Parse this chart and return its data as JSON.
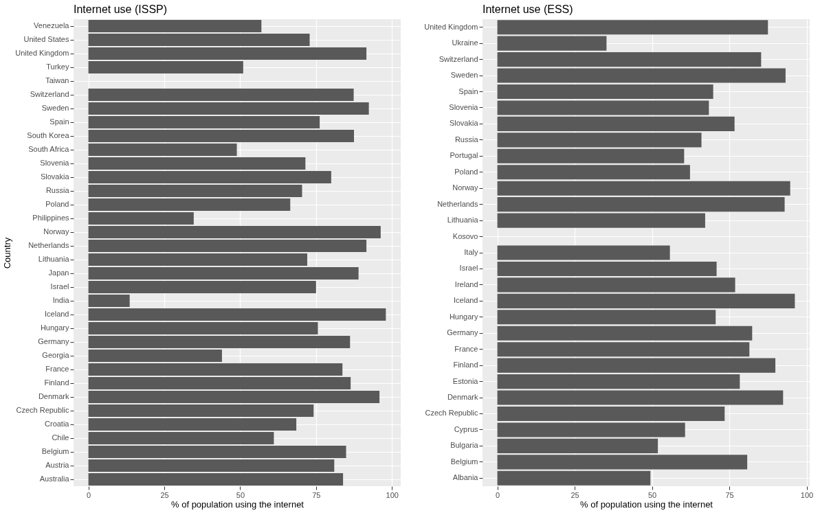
{
  "chart_data": [
    {
      "type": "bar",
      "orientation": "horizontal",
      "title": "Internet use (ISSP)",
      "xlabel": "% of population using the internet",
      "ylabel": "Country",
      "color": "#595959",
      "grid": true,
      "categories": [
        "Venezuela",
        "United States",
        "United Kingdom",
        "Turkey",
        "Taiwan",
        "Switzerland",
        "Sweden",
        "Spain",
        "South Korea",
        "South Africa",
        "Slovenia",
        "Slovakia",
        "Russia",
        "Poland",
        "Philippines",
        "Norway",
        "Netherlands",
        "Lithuania",
        "Japan",
        "Israel",
        "India",
        "Iceland",
        "Hungary",
        "Germany",
        "Georgia",
        "France",
        "Finland",
        "Denmark",
        "Czech Republic",
        "Croatia",
        "Chile",
        "Belgium",
        "Austria",
        "Australia"
      ],
      "values": [
        57.0,
        72.9,
        91.6,
        51.0,
        null,
        87.4,
        92.4,
        76.2,
        87.5,
        48.9,
        71.5,
        80.0,
        70.4,
        66.5,
        34.7,
        96.3,
        91.6,
        72.1,
        89.0,
        75.0,
        13.6,
        98.0,
        75.6,
        86.2,
        44.0,
        83.7,
        86.4,
        95.9,
        74.2,
        68.5,
        61.1,
        84.9,
        81.0,
        83.9
      ],
      "xlim": [
        -4.9,
        102.9
      ],
      "xticks": [
        0,
        25,
        50,
        75,
        100
      ]
    },
    {
      "type": "bar",
      "orientation": "horizontal",
      "title": "Internet use (ESS)",
      "xlabel": "% of population using the internet",
      "color": "#595959",
      "grid": true,
      "categories": [
        "United Kingdom",
        "Ukraine",
        "Switzerland",
        "Sweden",
        "Spain",
        "Slovenia",
        "Slovakia",
        "Russia",
        "Portugal",
        "Poland",
        "Norway",
        "Netherlands",
        "Lithuania",
        "Kosovo",
        "Italy",
        "Israel",
        "Ireland",
        "Iceland",
        "Hungary",
        "Germany",
        "France",
        "Finland",
        "Estonia",
        "Denmark",
        "Czech Republic",
        "Cyprus",
        "Bulgaria",
        "Belgium",
        "Albania"
      ],
      "values": [
        87.5,
        35.3,
        85.3,
        93.2,
        69.8,
        68.4,
        76.7,
        66.0,
        60.4,
        62.3,
        94.7,
        92.9,
        67.2,
        null,
        55.8,
        70.9,
        76.9,
        96.2,
        70.6,
        82.4,
        81.5,
        89.9,
        78.4,
        92.4,
        73.5,
        60.7,
        51.9,
        80.8,
        49.5
      ],
      "xlim": [
        -4.8,
        101.0
      ],
      "xticks": [
        0,
        25,
        50,
        75,
        100
      ]
    }
  ]
}
